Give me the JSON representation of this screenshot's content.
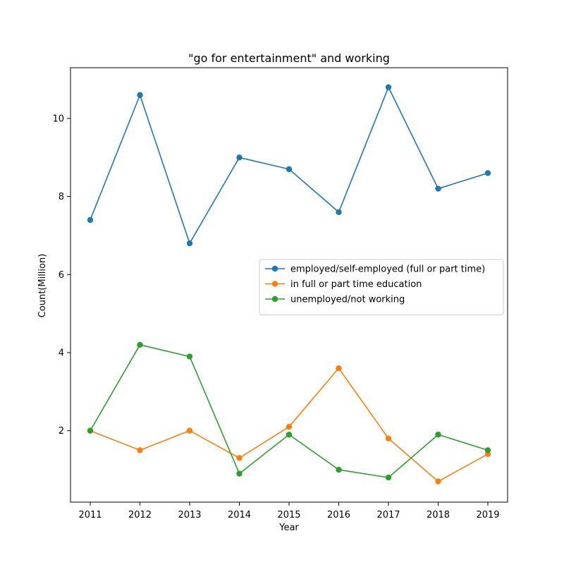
{
  "chart_data": {
    "type": "line",
    "title": "\"go for entertainment\" and working",
    "xlabel": "Year",
    "ylabel": "Count(Million)",
    "categories": [
      "2011",
      "2012",
      "2013",
      "2014",
      "2015",
      "2016",
      "2017",
      "2018",
      "2019"
    ],
    "ylim": [
      0.17,
      11.3
    ],
    "yticks": [
      "2",
      "4",
      "6",
      "8",
      "10"
    ],
    "grid": false,
    "legend_position": "center-right",
    "series": [
      {
        "name": "employed/self-employed (full or part time)",
        "color": "#1f77b4",
        "values": [
          7.4,
          10.6,
          6.8,
          9.0,
          8.7,
          7.6,
          10.8,
          8.2,
          8.6
        ]
      },
      {
        "name": "in full or part time education",
        "color": "#ff7f0e",
        "values": [
          2.0,
          1.5,
          2.0,
          1.3,
          2.1,
          3.6,
          1.8,
          0.7,
          1.4
        ]
      },
      {
        "name": "unemployed/not working",
        "color": "#2ca02c",
        "values": [
          2.0,
          4.2,
          3.9,
          0.9,
          1.9,
          1.0,
          0.8,
          1.9,
          1.5
        ]
      }
    ]
  }
}
